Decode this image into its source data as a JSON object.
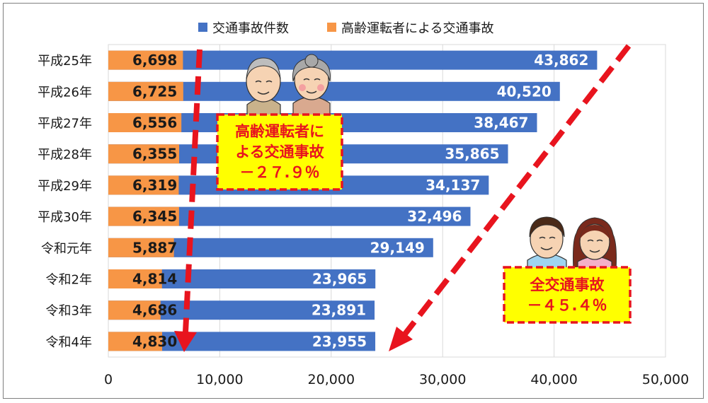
{
  "chart_data": {
    "type": "bar",
    "orientation": "horizontal",
    "categories": [
      "平成25年",
      "平成26年",
      "平成27年",
      "平成28年",
      "平成29年",
      "平成30年",
      "令和元年",
      "令和2年",
      "令和3年",
      "令和4年"
    ],
    "series": [
      {
        "name": "交通事故件数",
        "color": "#4472c4",
        "values": [
          43862,
          40520,
          38467,
          35865,
          34137,
          32496,
          29149,
          23965,
          23891,
          23955
        ],
        "labels": [
          "43,862",
          "40,520",
          "38,467",
          "35,865",
          "34,137",
          "32,496",
          "29,149",
          "23,965",
          "23,891",
          "23,955"
        ]
      },
      {
        "name": "高齢運転者による交通事故",
        "color": "#f79646",
        "values": [
          6698,
          6725,
          6556,
          6355,
          6319,
          6345,
          5887,
          4814,
          4686,
          4830
        ],
        "labels": [
          "6,698",
          "6,725",
          "6,556",
          "6,355",
          "6,319",
          "6,345",
          "5,887",
          "4,814",
          "4,686",
          "4,830"
        ]
      }
    ],
    "xlim": [
      0,
      50000
    ],
    "xticks": [
      0,
      10000,
      20000,
      30000,
      40000,
      50000
    ],
    "xtick_labels": [
      "0",
      "10,000",
      "20,000",
      "30,000",
      "40,000",
      "50,000"
    ],
    "grid": true,
    "legend_position": "top",
    "annotations": [
      {
        "lines": [
          "高齢運転者に",
          "よる交通事故",
          "－２７.９％"
        ],
        "color": "#e8141e",
        "background": "#ffff00"
      },
      {
        "lines": [
          "全交通事故",
          "－４５.４％"
        ],
        "color": "#e8141e",
        "background": "#ffff00"
      }
    ]
  },
  "illustrations": [
    {
      "name": "elderly-couple-illustration"
    },
    {
      "name": "young-couple-illustration"
    }
  ]
}
